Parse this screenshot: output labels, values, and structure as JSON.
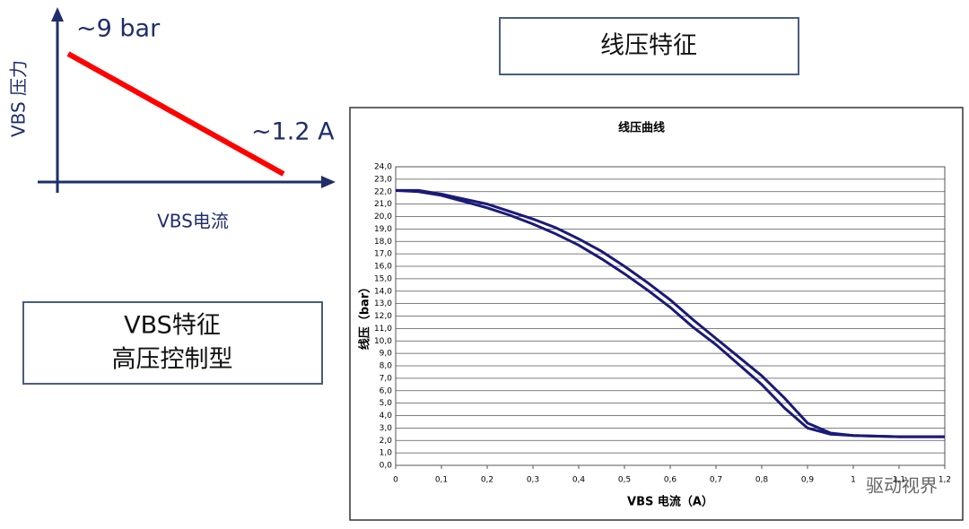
{
  "chart_data": [
    {
      "type": "schematic",
      "ylabel": "VBS 压力",
      "xlabel": "VBS电流",
      "annotations": [
        "~9 bar",
        "~1.2 A"
      ],
      "color": "#ff0000"
    },
    {
      "type": "line",
      "title": "线压曲线",
      "xlabel": "VBS 电流（A）",
      "ylabel": "线压（bar）",
      "x": [
        0,
        0.05,
        0.1,
        0.15,
        0.2,
        0.25,
        0.3,
        0.35,
        0.4,
        0.45,
        0.5,
        0.55,
        0.6,
        0.65,
        0.7,
        0.75,
        0.8,
        0.85,
        0.9,
        0.95,
        1.0,
        1.1,
        1.2
      ],
      "series": [
        {
          "color": "#1a1a7a",
          "values": [
            22.1,
            22.1,
            21.8,
            21.4,
            21.0,
            20.4,
            19.8,
            19.1,
            18.2,
            17.2,
            16.0,
            14.7,
            13.3,
            11.7,
            10.2,
            8.7,
            7.2,
            5.4,
            3.4,
            2.6,
            2.4,
            2.3,
            2.3
          ]
        },
        {
          "color": "#1a1a7a",
          "values": [
            22.1,
            22.0,
            21.7,
            21.2,
            20.7,
            20.1,
            19.4,
            18.6,
            17.7,
            16.6,
            15.4,
            14.1,
            12.7,
            11.1,
            9.7,
            8.1,
            6.5,
            4.6,
            3.0,
            2.5,
            2.4,
            2.3,
            2.3
          ]
        }
      ],
      "xlim": [
        0,
        1.2
      ],
      "xticks": [
        0,
        {
          "value": 0.1,
          "label": "0,1"
        },
        {
          "value": 0.2,
          "label": "0,2"
        },
        {
          "value": 0.3,
          "label": "0,3"
        },
        {
          "value": 0.4,
          "label": "0,4"
        },
        {
          "value": 0.5,
          "label": "0,5"
        },
        {
          "value": 0.6,
          "label": "0,6"
        },
        {
          "value": 0.7,
          "label": "0,7"
        },
        {
          "value": 0.8,
          "label": "0,8"
        },
        {
          "value": 0.9,
          "label": "0,9"
        },
        {
          "value": 1,
          "label": "1"
        },
        {
          "value": 1.1,
          "label": "1,1"
        },
        {
          "value": 1.2,
          "label": "1,2"
        }
      ],
      "ylim": [
        0,
        24
      ],
      "yticks": [
        {
          "value": 0,
          "label": "0,0"
        },
        {
          "value": 1,
          "label": "1,0"
        },
        {
          "value": 2,
          "label": "2,0"
        },
        {
          "value": 3,
          "label": "3,0"
        },
        {
          "value": 4,
          "label": "4,0"
        },
        {
          "value": 5,
          "label": "5,0"
        },
        {
          "value": 6,
          "label": "6,0"
        },
        {
          "value": 7,
          "label": "7,0"
        },
        {
          "value": 8,
          "label": "8,0"
        },
        {
          "value": 9,
          "label": "9,0"
        },
        {
          "value": 10,
          "label": "10,0"
        },
        {
          "value": 11,
          "label": "11,0"
        },
        {
          "value": 12,
          "label": "12,0"
        },
        {
          "value": 13,
          "label": "13,0"
        },
        {
          "value": 14,
          "label": "14,0"
        },
        {
          "value": 15,
          "label": "15,0"
        },
        {
          "value": 16,
          "label": "16,0"
        },
        {
          "value": 17,
          "label": "17,0"
        },
        {
          "value": 18,
          "label": "18,0"
        },
        {
          "value": 19,
          "label": "19,0"
        },
        {
          "value": 20,
          "label": "20,0"
        },
        {
          "value": 21,
          "label": "21,0"
        },
        {
          "value": 22,
          "label": "22,0"
        },
        {
          "value": 23,
          "label": "23,0"
        },
        {
          "value": 24,
          "label": "24,0"
        }
      ],
      "grid": "y"
    }
  ],
  "boxes": [
    {
      "lines": [
        "线压特征"
      ]
    },
    {
      "lines": [
        "VBS特征",
        "高压控制型"
      ]
    }
  ],
  "watermark": "驱动视界"
}
